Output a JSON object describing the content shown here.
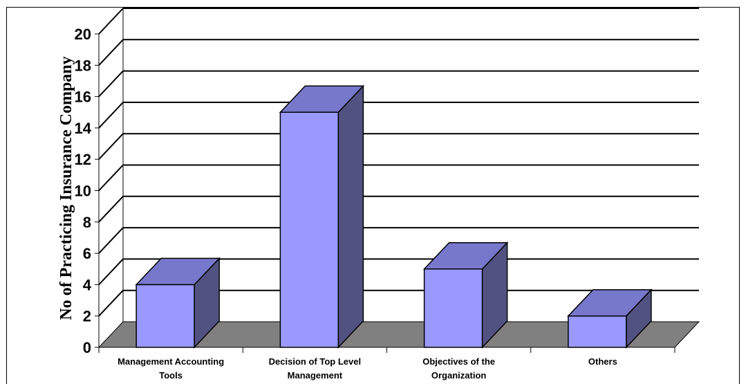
{
  "chart_data": {
    "type": "bar",
    "title": "",
    "xlabel": "",
    "ylabel": "No of Practicing Insurance Company",
    "categories": [
      [
        "Management Accounting",
        "Tools"
      ],
      [
        "Decision of Top Level",
        "Management"
      ],
      [
        "Objectives of the",
        "Organization"
      ],
      [
        "Others"
      ]
    ],
    "values": [
      4,
      15,
      5,
      2
    ],
    "ylim": [
      0,
      20
    ],
    "yticks": [
      "0",
      "2",
      "4",
      "6",
      "8",
      "10",
      "12",
      "14",
      "16",
      "18",
      "20"
    ],
    "grid": true,
    "legend": "none",
    "style": "3d-column"
  },
  "colors": {
    "bar_front": "#9999ff",
    "bar_top": "#7777cc",
    "bar_side": "#525282",
    "floor": "#808080",
    "gridline": "#000000",
    "background": "#ffffff"
  }
}
